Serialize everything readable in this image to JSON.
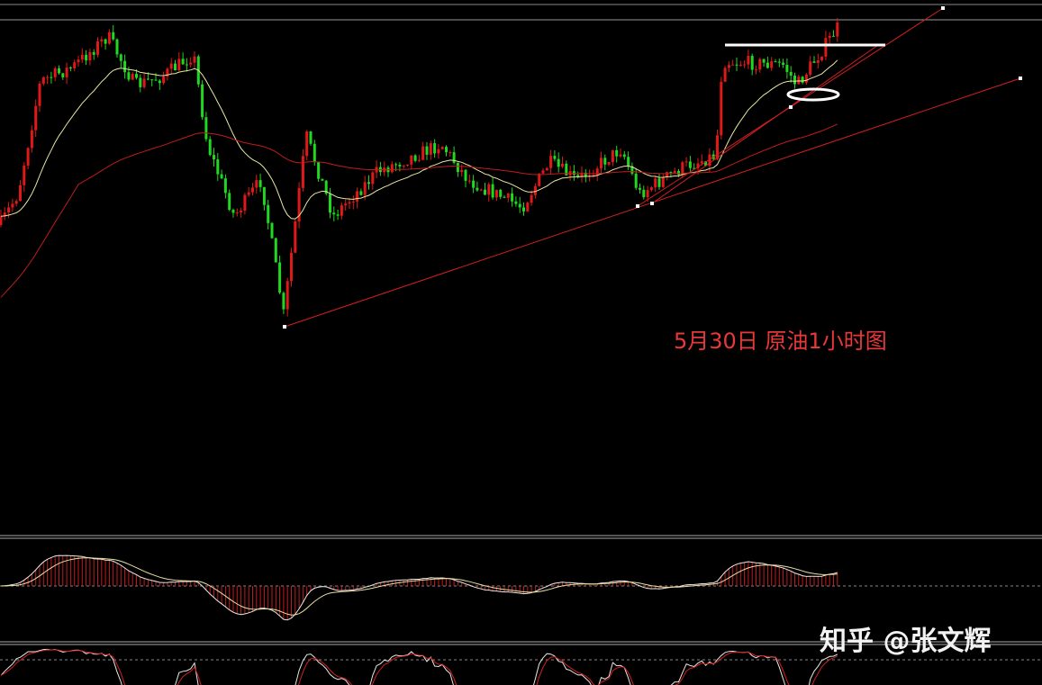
{
  "caption": "5月30日 原油1小时图",
  "watermark": "知乎 @张文辉"
}
